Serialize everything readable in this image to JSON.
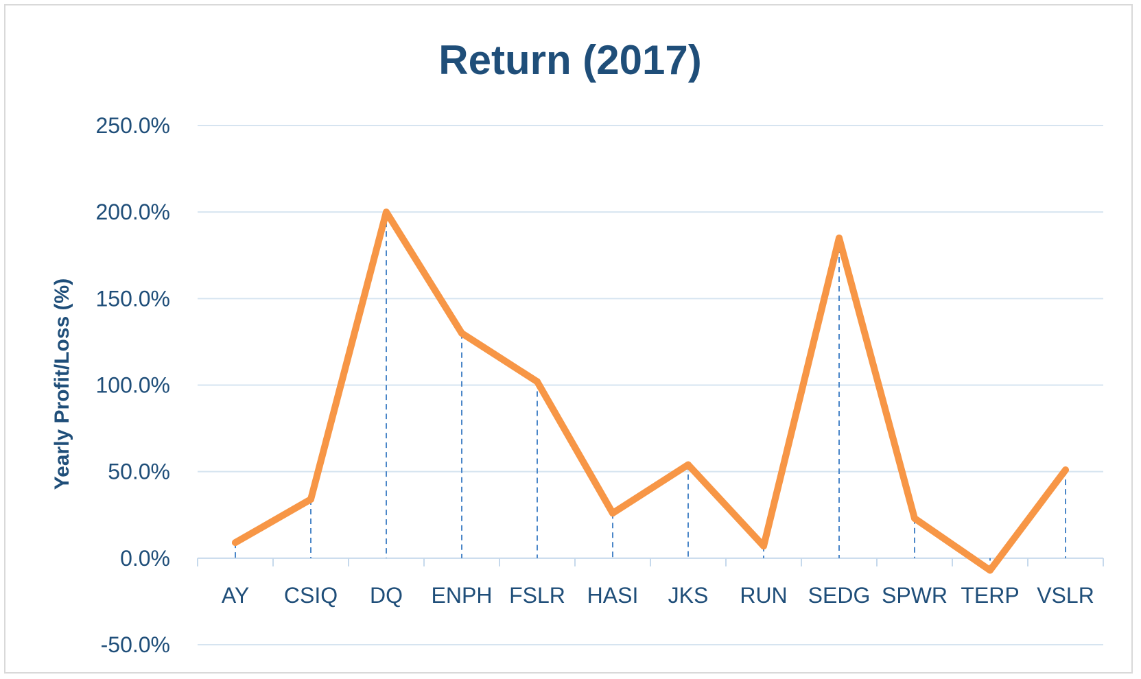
{
  "chart_data": {
    "type": "line",
    "title": "Return (2017)",
    "xlabel": "",
    "ylabel": "Yearly Profit/Loss (%)",
    "categories": [
      "AY",
      "CSIQ",
      "DQ",
      "ENPH",
      "FSLR",
      "HASI",
      "JKS",
      "RUN",
      "SEDG",
      "SPWR",
      "TERP",
      "VSLR"
    ],
    "series": [
      {
        "values": [
          9,
          34,
          200,
          130,
          102,
          26,
          54,
          7,
          185,
          23,
          -7,
          51
        ]
      }
    ],
    "ylim": [
      -50,
      250
    ],
    "yticks": [
      -50,
      0,
      50,
      100,
      150,
      200,
      250
    ],
    "ytick_labels": [
      "-50.0%",
      "0.0%",
      "50.0%",
      "100.0%",
      "150.0%",
      "200.0%",
      "250.0%"
    ],
    "grid": true,
    "drop_lines": true,
    "colors": {
      "line": "#f79646",
      "grid": "#d6e4f0",
      "drop_line": "#4a86c8",
      "axis": "#c6d9ec",
      "text": "#1f4e79"
    }
  }
}
